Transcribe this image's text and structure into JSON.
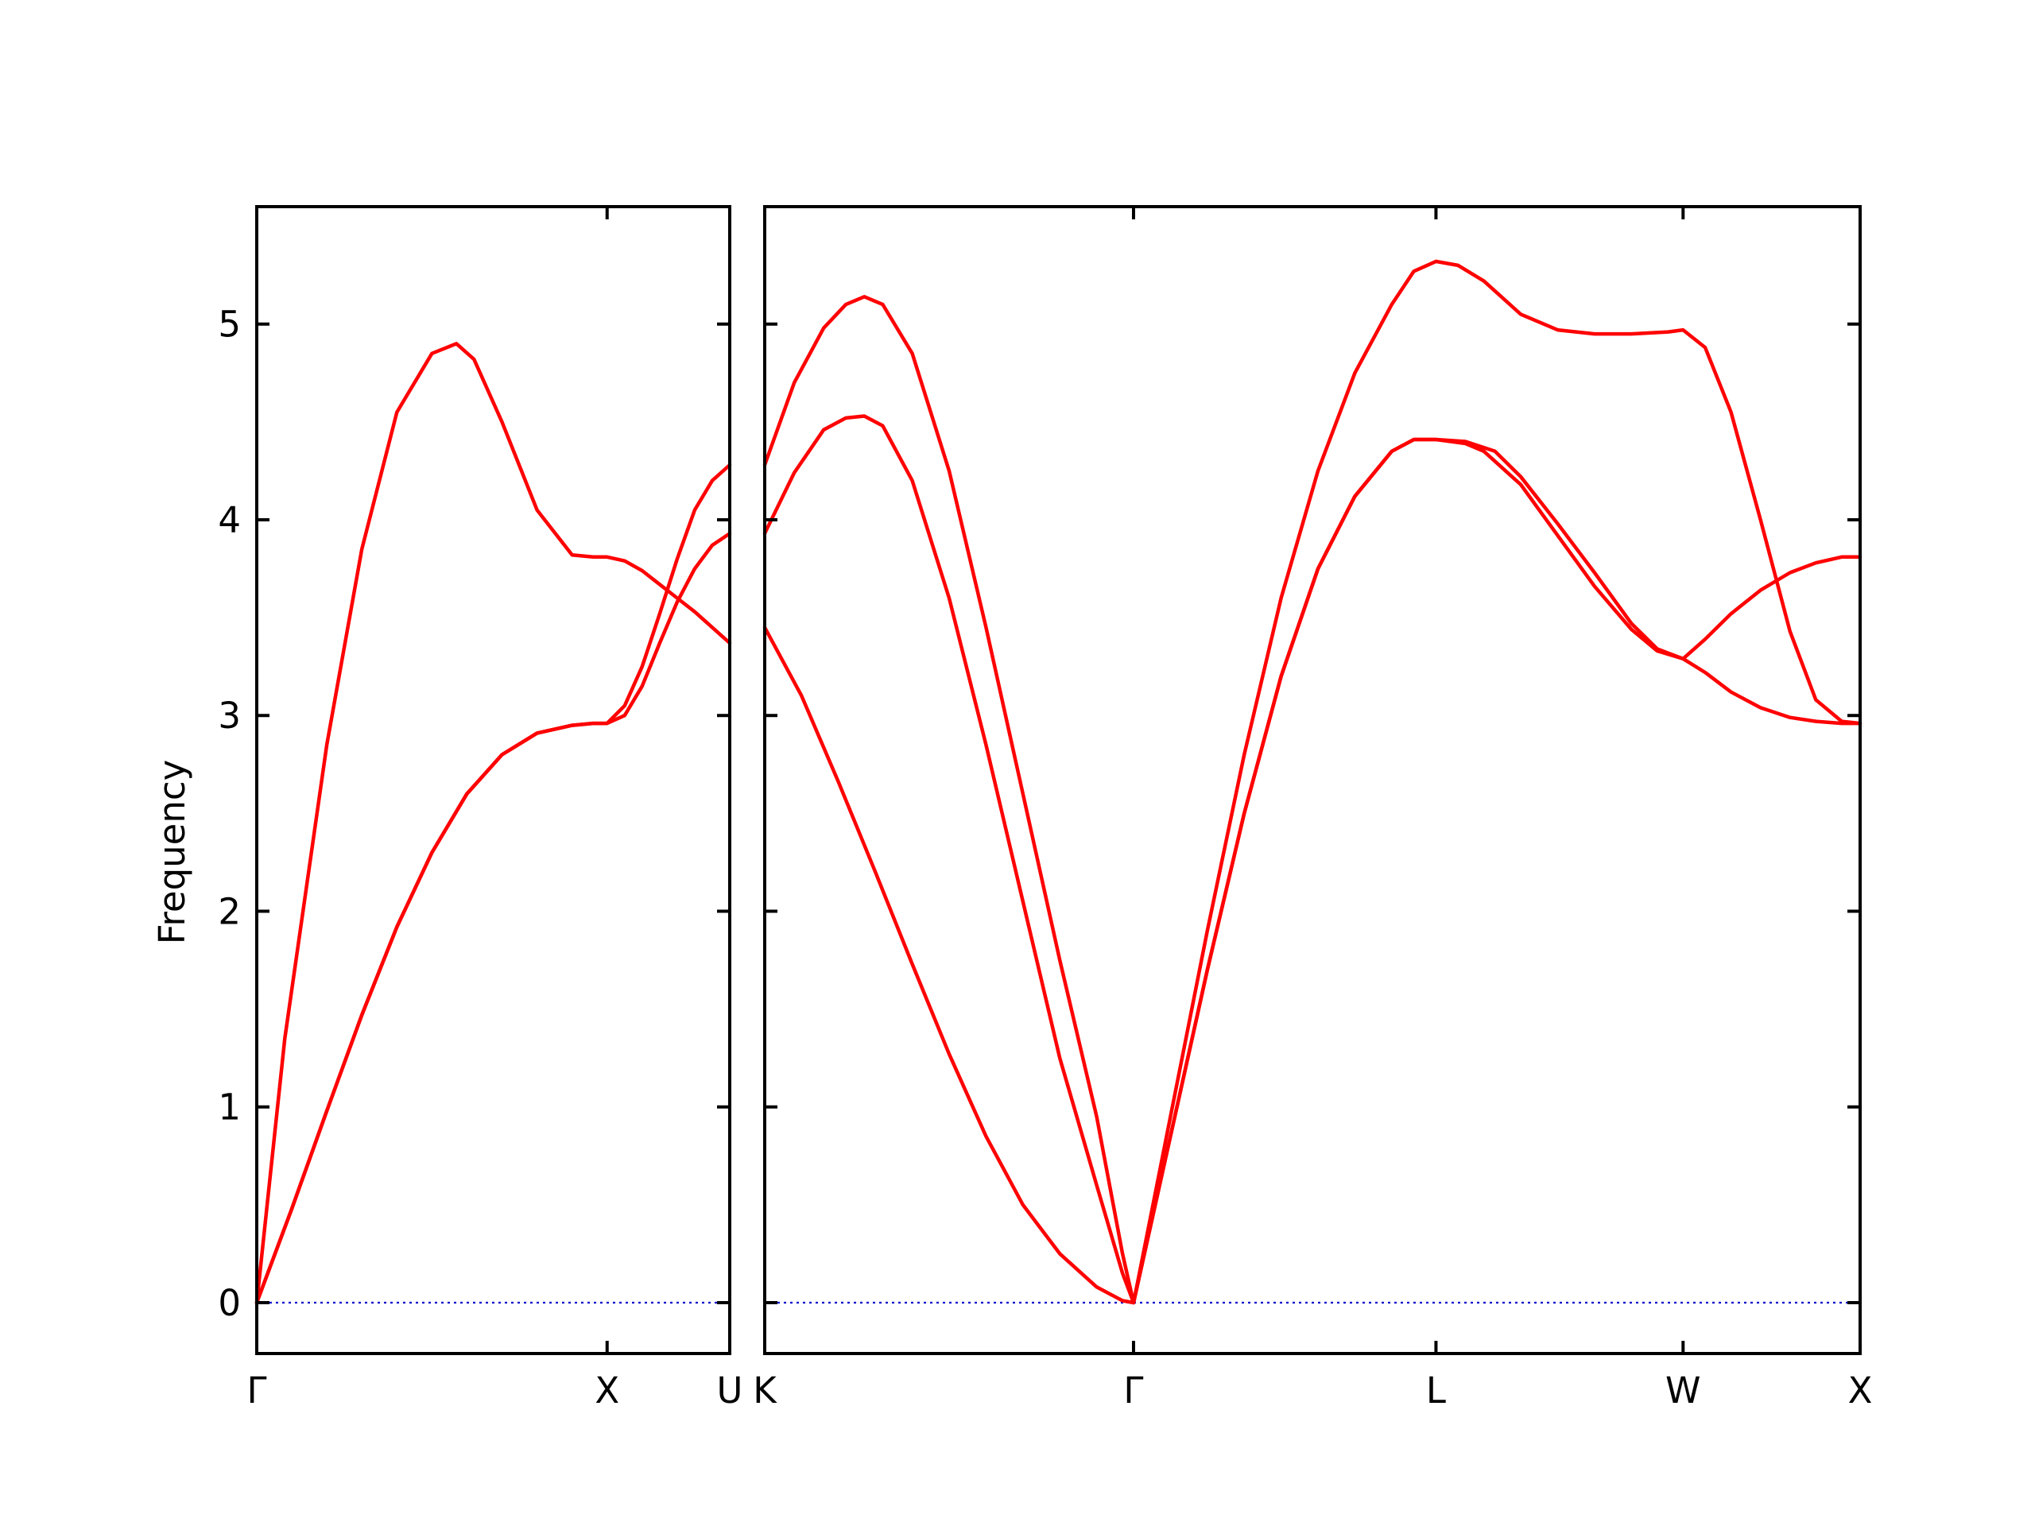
{
  "chart_data": {
    "type": "line",
    "ylabel": "Frequency",
    "ylim": [
      -0.26,
      5.6
    ],
    "y_ticks": [
      "0",
      "1",
      "2",
      "3",
      "4",
      "5"
    ],
    "grid": false,
    "legend": "none",
    "colors": {
      "bands": "#ff0000",
      "zero_line": "#0000cc",
      "axes": "#000000"
    },
    "panels": [
      {
        "id": "left",
        "x_range": [
          0,
          1.35
        ],
        "x_ticks": [
          {
            "x": 0,
            "label": "Γ"
          },
          {
            "x": 1.0,
            "label": "X"
          },
          {
            "x": 1.35,
            "label": "U"
          }
        ],
        "series": [
          {
            "x": [
              0,
              0.08,
              0.2,
              0.3,
              0.4,
              0.5,
              0.57,
              0.62,
              0.7,
              0.8,
              0.9,
              0.96,
              1.0,
              1.05,
              1.1,
              1.15,
              1.2,
              1.25,
              1.3,
              1.35
            ],
            "y": [
              0,
              1.35,
              2.85,
              3.85,
              4.55,
              4.85,
              4.9,
              4.82,
              4.5,
              4.05,
              3.82,
              3.81,
              3.81,
              3.79,
              3.74,
              3.67,
              3.6,
              3.53,
              3.45,
              3.37
            ]
          },
          {
            "x": [
              0,
              0.1,
              0.2,
              0.3,
              0.4,
              0.5,
              0.6,
              0.7,
              0.8,
              0.9,
              0.96,
              1.0,
              1.05,
              1.1,
              1.15,
              1.2,
              1.25,
              1.3,
              1.35
            ],
            "y": [
              0,
              0.48,
              0.98,
              1.47,
              1.92,
              2.3,
              2.6,
              2.8,
              2.91,
              2.95,
              2.96,
              2.96,
              3.05,
              3.25,
              3.52,
              3.8,
              4.05,
              4.2,
              4.28
            ]
          },
          {
            "x": [
              0,
              0.1,
              0.2,
              0.3,
              0.4,
              0.5,
              0.6,
              0.7,
              0.8,
              0.9,
              0.96,
              1.0,
              1.05,
              1.1,
              1.15,
              1.2,
              1.25,
              1.3,
              1.35
            ],
            "y": [
              0,
              0.48,
              0.98,
              1.47,
              1.92,
              2.3,
              2.6,
              2.8,
              2.91,
              2.95,
              2.96,
              2.96,
              3.0,
              3.15,
              3.37,
              3.58,
              3.75,
              3.87,
              3.93
            ]
          }
        ]
      },
      {
        "id": "right",
        "x_range": [
          0,
          2.97
        ],
        "x_ticks": [
          {
            "x": 0,
            "label": "K"
          },
          {
            "x": 1.0,
            "label": "Γ"
          },
          {
            "x": 1.82,
            "label": "L"
          },
          {
            "x": 2.49,
            "label": "W"
          },
          {
            "x": 2.97,
            "label": "X"
          }
        ],
        "series": [
          {
            "x": [
              0,
              0.08,
              0.16,
              0.22,
              0.27,
              0.32,
              0.4,
              0.5,
              0.6,
              0.7,
              0.8,
              0.9,
              0.97,
              1.0,
              1.1,
              1.2,
              1.3,
              1.4,
              1.5,
              1.6,
              1.7,
              1.76,
              1.82,
              1.88,
              1.95,
              2.05,
              2.15,
              2.25,
              2.35,
              2.45,
              2.49,
              2.55,
              2.62,
              2.7,
              2.78,
              2.85,
              2.92,
              2.97
            ],
            "y": [
              4.28,
              4.7,
              4.98,
              5.1,
              5.14,
              5.1,
              4.85,
              4.25,
              3.45,
              2.6,
              1.75,
              0.95,
              0.25,
              0,
              0.95,
              1.9,
              2.8,
              3.6,
              4.25,
              4.75,
              5.1,
              5.27,
              5.32,
              5.3,
              5.22,
              5.05,
              4.97,
              4.95,
              4.95,
              4.96,
              4.97,
              4.88,
              4.55,
              4.0,
              3.43,
              3.08,
              2.97,
              2.96
            ]
          },
          {
            "x": [
              0,
              0.08,
              0.16,
              0.22,
              0.27,
              0.32,
              0.4,
              0.5,
              0.6,
              0.7,
              0.8,
              0.9,
              0.97,
              1.0,
              1.1,
              1.2,
              1.3,
              1.4,
              1.5,
              1.6,
              1.7,
              1.76,
              1.82,
              1.9,
              1.95,
              2.05,
              2.15,
              2.25,
              2.35,
              2.42,
              2.49,
              2.55,
              2.62,
              2.7,
              2.78,
              2.85,
              2.92,
              2.97
            ],
            "y": [
              3.93,
              4.24,
              4.46,
              4.52,
              4.53,
              4.48,
              4.2,
              3.6,
              2.85,
              2.05,
              1.25,
              0.6,
              0.15,
              0,
              0.85,
              1.7,
              2.5,
              3.2,
              3.75,
              4.12,
              4.35,
              4.41,
              4.41,
              4.39,
              4.35,
              4.18,
              3.92,
              3.66,
              3.44,
              3.33,
              3.29,
              3.22,
              3.12,
              3.04,
              2.99,
              2.97,
              2.96,
              2.96
            ]
          },
          {
            "x": [
              0,
              0.1,
              0.2,
              0.3,
              0.4,
              0.5,
              0.6,
              0.7,
              0.8,
              0.9,
              0.97,
              1.0,
              1.1,
              1.2,
              1.3,
              1.4,
              1.5,
              1.6,
              1.7,
              1.76,
              1.82,
              1.9,
              1.98,
              2.05,
              2.15,
              2.25,
              2.35,
              2.42,
              2.49,
              2.55,
              2.62,
              2.7,
              2.78,
              2.85,
              2.92,
              2.97
            ],
            "y": [
              3.45,
              3.1,
              2.66,
              2.2,
              1.73,
              1.27,
              0.85,
              0.5,
              0.25,
              0.08,
              0.01,
              0,
              0.85,
              1.7,
              2.5,
              3.2,
              3.75,
              4.12,
              4.35,
              4.41,
              4.41,
              4.4,
              4.35,
              4.22,
              3.98,
              3.73,
              3.47,
              3.34,
              3.29,
              3.39,
              3.52,
              3.64,
              3.73,
              3.78,
              3.81,
              3.81
            ]
          }
        ]
      }
    ]
  }
}
